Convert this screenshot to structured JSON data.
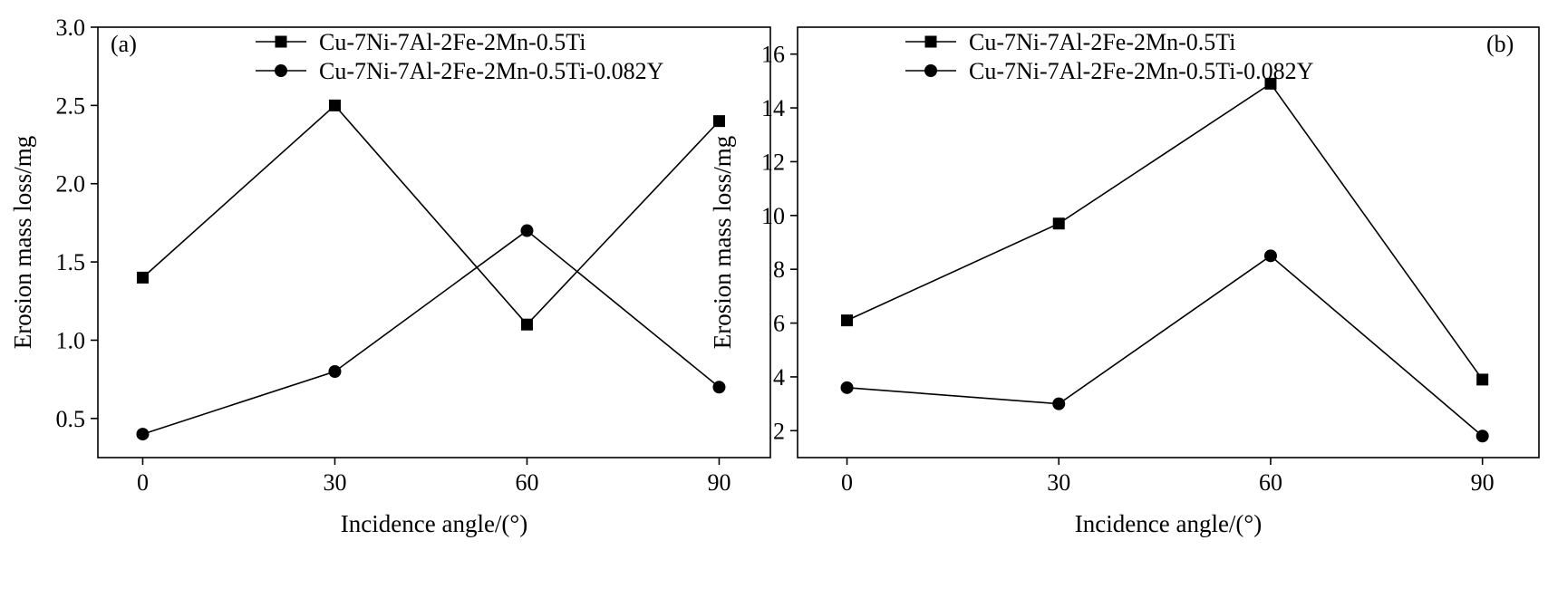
{
  "chart_data": [
    {
      "type": "line",
      "panel_label": "(a)",
      "xlabel": "Incidence angle/(°)",
      "ylabel": "Erosion mass loss/mg",
      "x": [
        0,
        30,
        60,
        90
      ],
      "xticks": [
        "0",
        "30",
        "60",
        "90"
      ],
      "xlim": [
        -7,
        98
      ],
      "yticks": [
        "0.5",
        "1.0",
        "1.5",
        "2.0",
        "2.5",
        "3.0"
      ],
      "ylim": [
        0.25,
        3.0
      ],
      "grid": false,
      "legend_position": "top-center",
      "series": [
        {
          "name": "Cu-7Ni-7Al-2Fe-2Mn-0.5Ti",
          "marker": "square",
          "values": [
            1.4,
            2.5,
            1.1,
            2.4
          ]
        },
        {
          "name": "Cu-7Ni-7Al-2Fe-2Mn-0.5Ti-0.082Y",
          "marker": "circle",
          "values": [
            0.4,
            0.8,
            1.7,
            0.7
          ]
        }
      ]
    },
    {
      "type": "line",
      "panel_label": "(b)",
      "xlabel": "Incidence angle/(°)",
      "ylabel": "Erosion mass loss/mg",
      "x": [
        0,
        30,
        60,
        90
      ],
      "xticks": [
        "0",
        "30",
        "60",
        "90"
      ],
      "xlim": [
        -7,
        98
      ],
      "yticks": [
        "2",
        "4",
        "6",
        "8",
        "10",
        "12",
        "14",
        "16"
      ],
      "ylim": [
        1,
        17
      ],
      "grid": false,
      "legend_position": "top-left",
      "series": [
        {
          "name": "Cu-7Ni-7Al-2Fe-2Mn-0.5Ti",
          "marker": "square",
          "values": [
            6.1,
            9.7,
            14.9,
            3.9
          ]
        },
        {
          "name": "Cu-7Ni-7Al-2Fe-2Mn-0.5Ti-0.082Y",
          "marker": "circle",
          "values": [
            3.6,
            3.0,
            8.5,
            1.8
          ]
        }
      ]
    }
  ]
}
